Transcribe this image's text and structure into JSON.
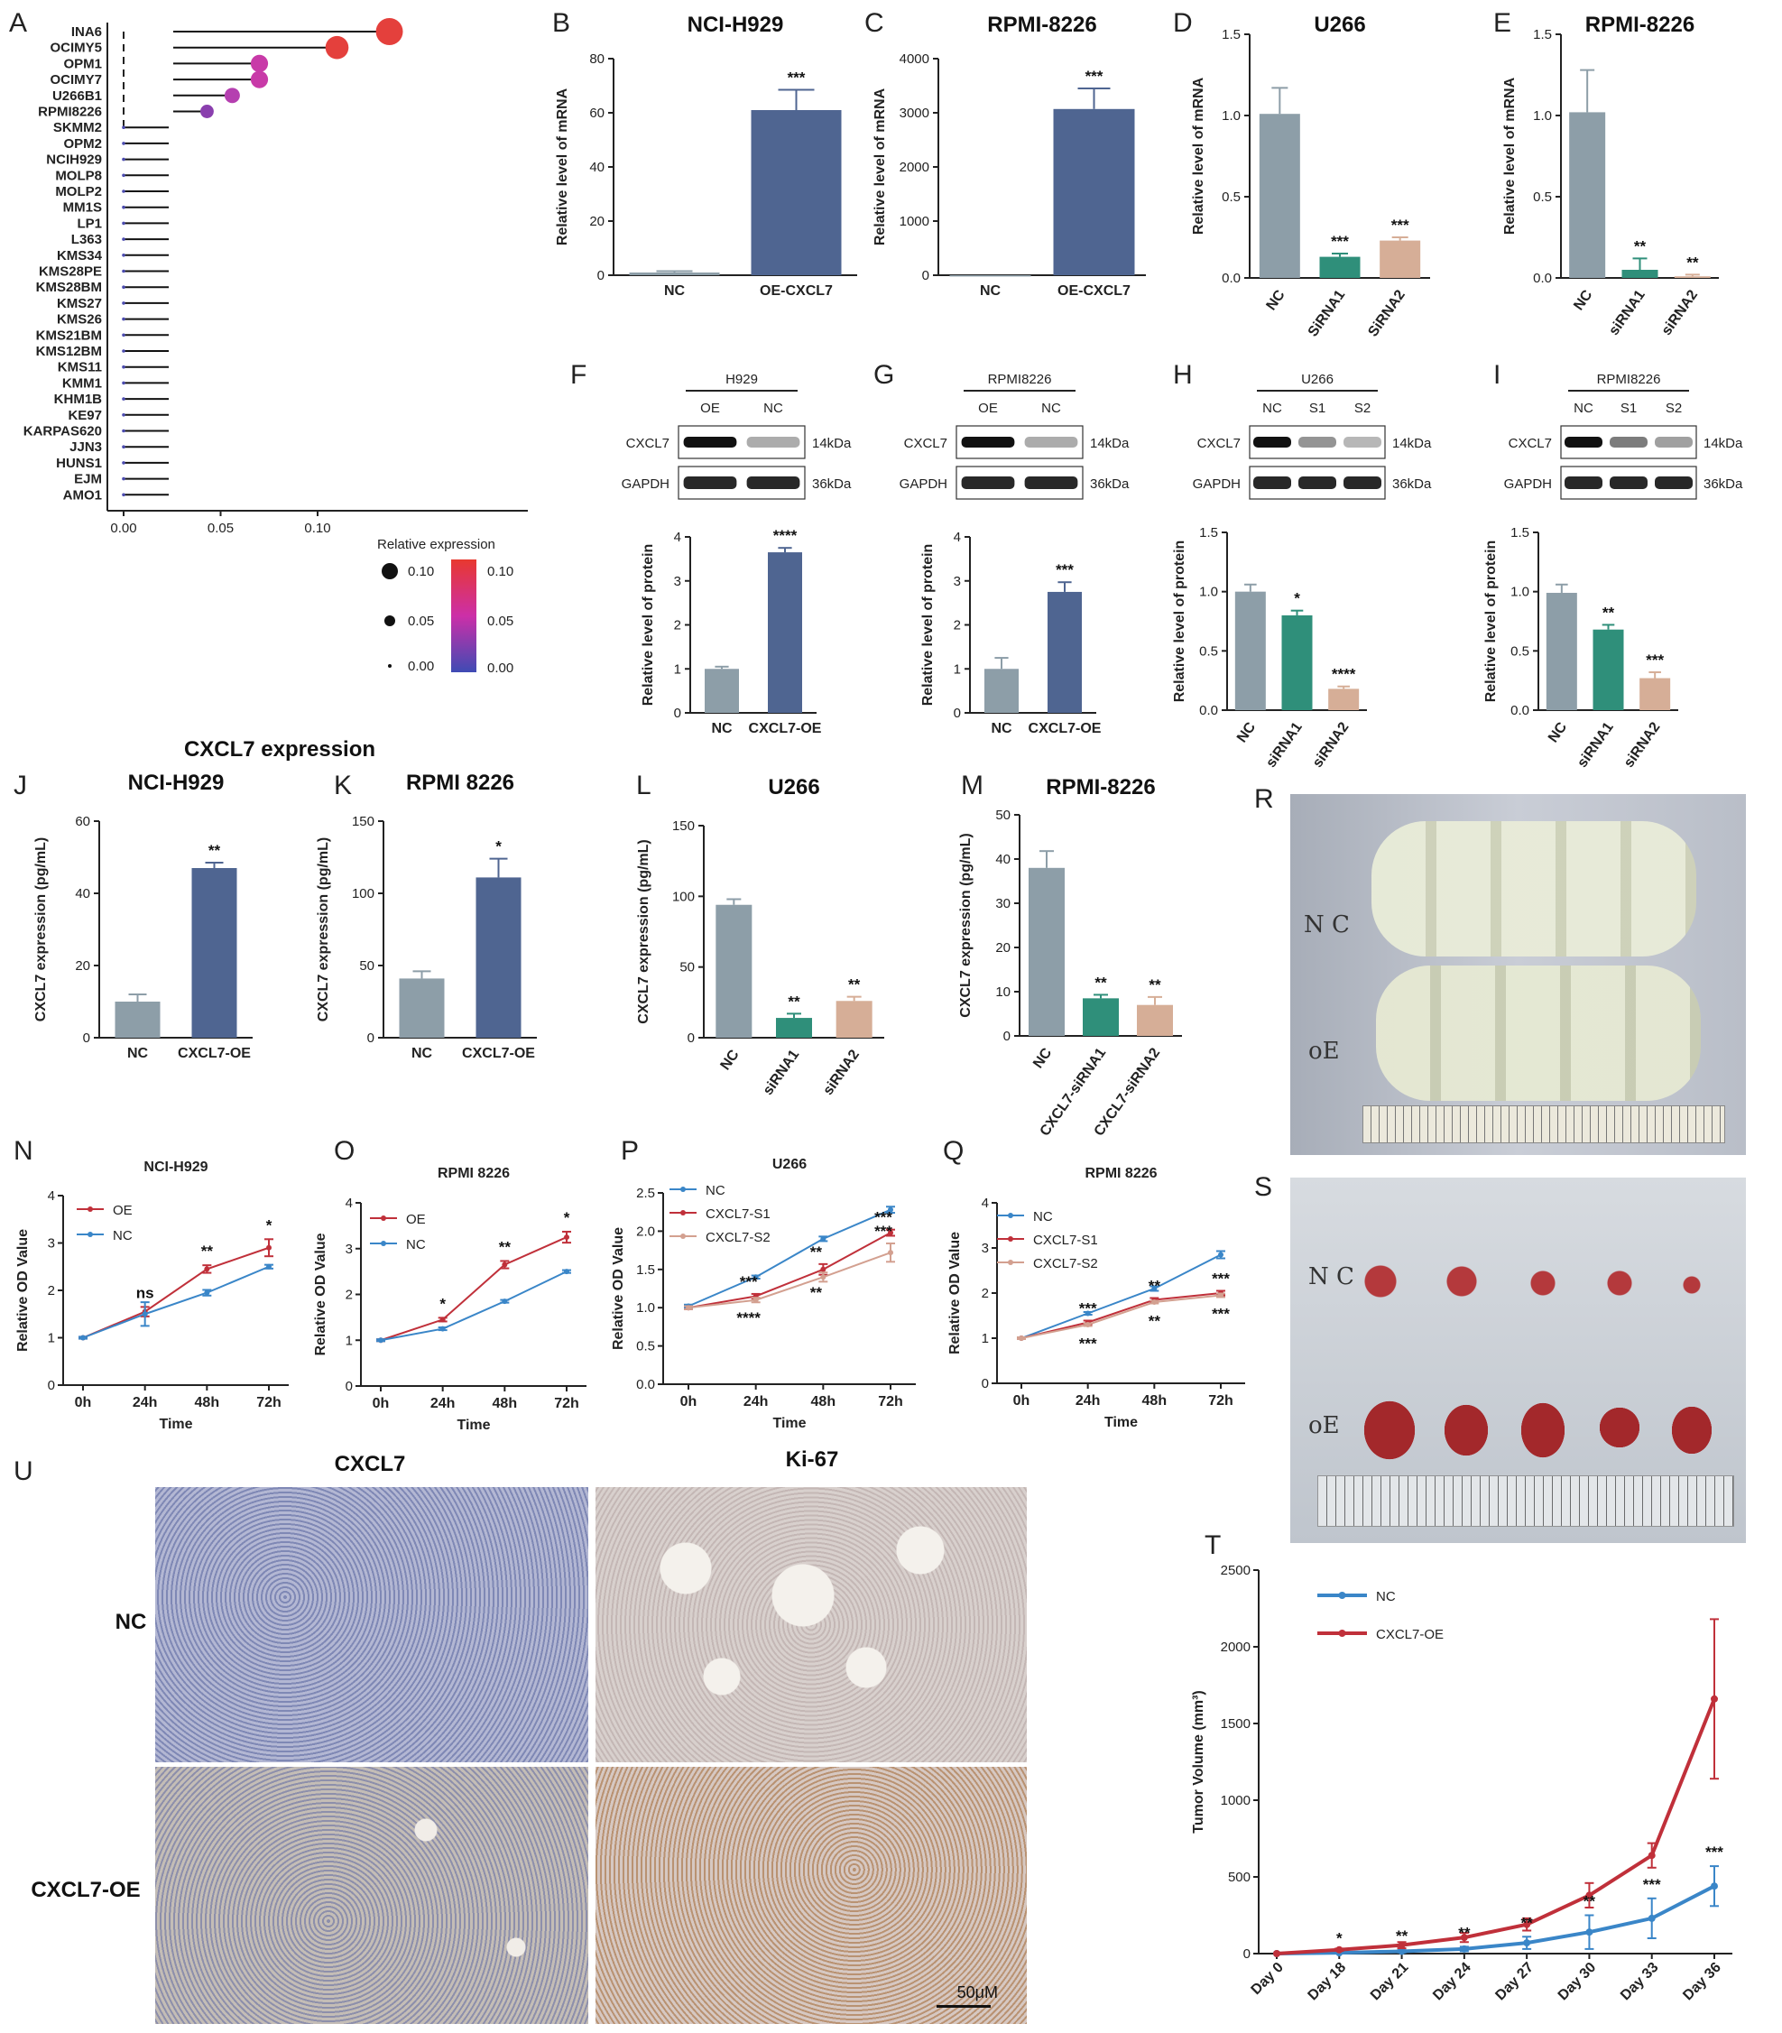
{
  "panel_letters": [
    "A",
    "B",
    "C",
    "D",
    "E",
    "F",
    "G",
    "H",
    "I",
    "J",
    "K",
    "L",
    "M",
    "N",
    "O",
    "P",
    "Q",
    "R",
    "S",
    "T",
    "U"
  ],
  "colors": {
    "nc": "#8d9ea8",
    "oe": "#4f6591",
    "sirna1": "#2f8f7a",
    "sirna2": "#d6ae97",
    "line_oe": "#c0303a",
    "line_nc": "#3a86c8",
    "line_s2": "#d3a090"
  },
  "lollipop": {
    "xlabel": "CXCL7 expression",
    "xticks": [
      "0.00",
      "0.05",
      "0.10"
    ],
    "legend_title": "Relative expression",
    "legend_size_labels": [
      "0.10",
      "0.05",
      "0.00"
    ],
    "legend_color_labels": [
      "0.10",
      "0.05",
      "0.00"
    ],
    "lines": [
      "INA6",
      "OCIMY5",
      "OPM1",
      "OCIMY7",
      "U266B1",
      "RPMI8226",
      "SKMM2",
      "OPM2",
      "NCIH929",
      "MOLP8",
      "MOLP2",
      "MM1S",
      "LP1",
      "L363",
      "KMS34",
      "KMS28PE",
      "KMS28BM",
      "KMS27",
      "KMS26",
      "KMS21BM",
      "KMS12BM",
      "KMS11",
      "KMM1",
      "KHM1B",
      "KE97",
      "KARPAS620",
      "JJN3",
      "HUNS1",
      "EJM",
      "AMO1"
    ],
    "values": [
      0.137,
      0.11,
      0.07,
      0.07,
      0.056,
      0.043,
      0,
      0,
      0,
      0,
      0,
      0,
      0,
      0,
      0,
      0,
      0,
      0,
      0,
      0,
      0,
      0,
      0,
      0,
      0,
      0,
      0,
      0,
      0,
      0
    ]
  },
  "blots": [
    {
      "id": "F",
      "cell": "H929",
      "lanes": [
        "OE",
        "NC"
      ],
      "intensity": [
        1.0,
        0.35
      ]
    },
    {
      "id": "G",
      "cell": "RPMI8226",
      "lanes": [
        "OE",
        "NC"
      ],
      "intensity": [
        1.0,
        0.35
      ]
    },
    {
      "id": "H",
      "cell": "U266",
      "lanes": [
        "NC",
        "S1",
        "S2"
      ],
      "intensity": [
        1.0,
        0.45,
        0.3
      ]
    },
    {
      "id": "I",
      "cell": "RPMI8226",
      "lanes": [
        "NC",
        "S1",
        "S2"
      ],
      "intensity": [
        1.0,
        0.55,
        0.4
      ]
    }
  ],
  "blot_labels": {
    "target": "CXCL7",
    "control": "GAPDH",
    "target_kda": "14kDa",
    "control_kda": "36kDa"
  },
  "chart_data": [
    {
      "id": "B",
      "type": "bar",
      "title": "NCI-H929",
      "ylabel": "Relative level of mRNA",
      "categories": [
        "NC",
        "OE-CXCL7"
      ],
      "values": [
        1,
        61
      ],
      "errors": [
        0.5,
        7.5
      ],
      "ylim": [
        0,
        80
      ],
      "yticks": [
        "0",
        "20",
        "40",
        "60",
        "80"
      ],
      "annotations": [
        "",
        "***"
      ]
    },
    {
      "id": "C",
      "type": "bar",
      "title": "RPMI-8226",
      "ylabel": "Relative level of mRNA",
      "categories": [
        "NC",
        "OE-CXCL7"
      ],
      "values": [
        1,
        3070
      ],
      "errors": [
        0,
        380
      ],
      "ylim": [
        0,
        4000
      ],
      "yticks": [
        "0",
        "1000",
        "2000",
        "3000",
        "4000"
      ],
      "annotations": [
        "",
        "***"
      ]
    },
    {
      "id": "D",
      "type": "bar",
      "title": "U266",
      "ylabel": "Relative level of mRNA",
      "categories": [
        "NC",
        "SiRNA1",
        "SiRNA2"
      ],
      "values": [
        1.01,
        0.13,
        0.23
      ],
      "errors": [
        0.16,
        0.02,
        0.02
      ],
      "ylim": [
        0,
        1.5
      ],
      "yticks": [
        "0.0",
        "0.5",
        "1.0",
        "1.5"
      ],
      "annotations": [
        "",
        "***",
        "***"
      ]
    },
    {
      "id": "E",
      "type": "bar",
      "title": "RPMI-8226",
      "ylabel": "Relative level of mRNA",
      "categories": [
        "NC",
        "siRNA1",
        "siRNA2"
      ],
      "values": [
        1.02,
        0.05,
        0.01
      ],
      "errors": [
        0.26,
        0.07,
        0.01
      ],
      "ylim": [
        0,
        1.5
      ],
      "yticks": [
        "0.0",
        "0.5",
        "1.0",
        "1.5"
      ],
      "annotations": [
        "",
        "**",
        "**"
      ]
    },
    {
      "id": "F",
      "type": "bar",
      "title": "",
      "ylabel": "Relative level of protein",
      "categories": [
        "NC",
        "CXCL7-OE"
      ],
      "values": [
        1.0,
        3.65
      ],
      "errors": [
        0.05,
        0.1
      ],
      "ylim": [
        0,
        4
      ],
      "yticks": [
        "0",
        "1",
        "2",
        "3",
        "4"
      ],
      "annotations": [
        "",
        "****"
      ]
    },
    {
      "id": "G",
      "type": "bar",
      "title": "",
      "ylabel": "Relative level of protein",
      "categories": [
        "NC",
        "CXCL7-OE"
      ],
      "values": [
        1.0,
        2.75
      ],
      "errors": [
        0.25,
        0.22
      ],
      "ylim": [
        0,
        4
      ],
      "yticks": [
        "0",
        "1",
        "2",
        "3",
        "4"
      ],
      "annotations": [
        "",
        "***"
      ]
    },
    {
      "id": "H",
      "type": "bar",
      "title": "",
      "ylabel": "Relative level of protein",
      "categories": [
        "NC",
        "siRNA1",
        "siRNA2"
      ],
      "values": [
        1.0,
        0.8,
        0.18
      ],
      "errors": [
        0.06,
        0.04,
        0.02
      ],
      "ylim": [
        0,
        1.5
      ],
      "yticks": [
        "0.0",
        "0.5",
        "1.0",
        "1.5"
      ],
      "annotations": [
        "",
        "*",
        "****"
      ]
    },
    {
      "id": "I",
      "type": "bar",
      "title": "",
      "ylabel": "Relative level of protein",
      "categories": [
        "NC",
        "siRNA1",
        "siRNA2"
      ],
      "values": [
        0.99,
        0.68,
        0.27
      ],
      "errors": [
        0.07,
        0.04,
        0.05
      ],
      "ylim": [
        0,
        1.5
      ],
      "yticks": [
        "0.0",
        "0.5",
        "1.0",
        "1.5"
      ],
      "annotations": [
        "",
        "**",
        "***"
      ]
    },
    {
      "id": "J",
      "type": "bar",
      "title": "NCI-H929",
      "ylabel": "CXCL7 expression (pg/mL)",
      "categories": [
        "NC",
        "CXCL7-OE"
      ],
      "values": [
        10,
        47
      ],
      "errors": [
        2,
        1.5
      ],
      "ylim": [
        0,
        60
      ],
      "yticks": [
        "0",
        "20",
        "40",
        "60"
      ],
      "annotations": [
        "",
        "**"
      ]
    },
    {
      "id": "K",
      "type": "bar",
      "title": "RPMI 8226",
      "ylabel": "CXCL7 expression (pg/mL)",
      "categories": [
        "NC",
        "CXCL7-OE"
      ],
      "values": [
        41,
        111
      ],
      "errors": [
        5,
        13
      ],
      "ylim": [
        0,
        150
      ],
      "yticks": [
        "0",
        "50",
        "100",
        "150"
      ],
      "annotations": [
        "",
        "*"
      ]
    },
    {
      "id": "L",
      "type": "bar",
      "title": "U266",
      "ylabel": "CXCL7 expression (pg/mL)",
      "categories": [
        "NC",
        "siRNA1",
        "siRNA2"
      ],
      "values": [
        94,
        14,
        26
      ],
      "errors": [
        4,
        3,
        3
      ],
      "ylim": [
        0,
        150
      ],
      "yticks": [
        "0",
        "50",
        "100",
        "150"
      ],
      "annotations": [
        "",
        "**",
        "**"
      ]
    },
    {
      "id": "M",
      "type": "bar",
      "title": "RPMI-8226",
      "ylabel": "CXCL7 expression (pg/mL)",
      "categories": [
        "NC",
        "CXCL7-siRNA1",
        "CXCL7-siRNA2"
      ],
      "values": [
        38,
        8.5,
        7
      ],
      "errors": [
        3.8,
        0.8,
        1.8
      ],
      "ylim": [
        0,
        50
      ],
      "yticks": [
        "0",
        "10",
        "20",
        "30",
        "40",
        "50"
      ],
      "annotations": [
        "",
        "**",
        "**"
      ]
    },
    {
      "id": "N",
      "type": "line",
      "title": "NCI-H929",
      "ylabel": "Relative OD Value",
      "xlabel": "Time",
      "x": [
        "0h",
        "24h",
        "48h",
        "72h"
      ],
      "ylim": [
        0,
        4
      ],
      "yticks": [
        "0",
        "1",
        "2",
        "3",
        "4"
      ],
      "series": [
        {
          "name": "OE",
          "values": [
            1.0,
            1.55,
            2.45,
            2.9
          ],
          "errors": [
            0.02,
            0.1,
            0.08,
            0.18
          ]
        },
        {
          "name": "NC",
          "values": [
            1.0,
            1.5,
            1.95,
            2.5
          ],
          "errors": [
            0.02,
            0.25,
            0.06,
            0.04
          ]
        }
      ],
      "annotations": [
        "",
        "ns",
        "**",
        "*"
      ]
    },
    {
      "id": "O",
      "type": "line",
      "title": "RPMI 8226",
      "ylabel": "Relative OD Value",
      "xlabel": "Time",
      "x": [
        "0h",
        "24h",
        "48h",
        "72h"
      ],
      "ylim": [
        0,
        4
      ],
      "yticks": [
        "0",
        "1",
        "2",
        "3",
        "4"
      ],
      "series": [
        {
          "name": "OE",
          "values": [
            1.0,
            1.45,
            2.65,
            3.25
          ],
          "errors": [
            0.02,
            0.04,
            0.08,
            0.12
          ]
        },
        {
          "name": "NC",
          "values": [
            1.0,
            1.25,
            1.85,
            2.5
          ],
          "errors": [
            0.02,
            0.03,
            0.03,
            0.03
          ]
        }
      ],
      "annotations": [
        "",
        "*",
        "**",
        "*"
      ]
    },
    {
      "id": "P",
      "type": "line",
      "title": "U266",
      "ylabel": "Relative OD Value",
      "xlabel": "Time",
      "x": [
        "0h",
        "24h",
        "48h",
        "72h"
      ],
      "ylim": [
        0,
        2.5
      ],
      "yticks": [
        "0.0",
        "0.5",
        "1.0",
        "1.5",
        "2.0",
        "2.5"
      ],
      "series": [
        {
          "name": "NC",
          "values": [
            1.02,
            1.4,
            1.9,
            2.28
          ],
          "errors": [
            0.02,
            0.02,
            0.03,
            0.04
          ]
        },
        {
          "name": "CXCL7-S1",
          "values": [
            1.0,
            1.15,
            1.5,
            1.98
          ],
          "errors": [
            0.02,
            0.03,
            0.07,
            0.04
          ]
        },
        {
          "name": "CXCL7-S2",
          "values": [
            1.0,
            1.1,
            1.4,
            1.72
          ],
          "errors": [
            0.02,
            0.03,
            0.06,
            0.12
          ]
        }
      ],
      "annotations_top": [
        "",
        "***",
        "**",
        "***"
      ],
      "annotations_mid": [
        "",
        "",
        "",
        "***"
      ],
      "annotations_low": [
        "",
        "****",
        "**",
        ""
      ]
    },
    {
      "id": "Q",
      "type": "line",
      "title": "RPMI 8226",
      "ylabel": "Relative OD Value",
      "xlabel": "Time",
      "x": [
        "0h",
        "24h",
        "48h",
        "72h"
      ],
      "ylim": [
        0,
        4
      ],
      "yticks": [
        "0",
        "1",
        "2",
        "3",
        "4"
      ],
      "series": [
        {
          "name": "NC",
          "values": [
            1.0,
            1.55,
            2.1,
            2.85
          ],
          "errors": [
            0.02,
            0.03,
            0.05,
            0.08
          ]
        },
        {
          "name": "CXCL7-S1",
          "values": [
            1.0,
            1.35,
            1.85,
            2.0
          ],
          "errors": [
            0.02,
            0.04,
            0.04,
            0.05
          ]
        },
        {
          "name": "CXCL7-S2",
          "values": [
            1.0,
            1.3,
            1.8,
            1.95
          ],
          "errors": [
            0.02,
            0.03,
            0.03,
            0.04
          ]
        }
      ],
      "annotations_top": [
        "",
        "***",
        "**",
        "***"
      ],
      "annotations_low": [
        "",
        "***",
        "**",
        "***"
      ]
    },
    {
      "id": "T",
      "type": "line",
      "title": "",
      "ylabel": "Tumor Volume (mm³)",
      "xlabel": "",
      "x": [
        "Day 0",
        "Day 18",
        "Day 21",
        "Day 24",
        "Day 27",
        "Day 30",
        "Day 33",
        "Day 36"
      ],
      "ylim": [
        0,
        2500
      ],
      "yticks": [
        "0",
        "500",
        "1000",
        "1500",
        "2000",
        "2500"
      ],
      "series": [
        {
          "name": "NC",
          "values": [
            0,
            5,
            15,
            30,
            70,
            140,
            230,
            440
          ],
          "errors": [
            0,
            3,
            8,
            15,
            40,
            110,
            130,
            130
          ]
        },
        {
          "name": "CXCL7-OE",
          "values": [
            0,
            25,
            55,
            105,
            190,
            380,
            640,
            1660
          ],
          "errors": [
            0,
            8,
            20,
            30,
            40,
            80,
            80,
            520
          ]
        }
      ],
      "annotations": [
        "",
        "*",
        "**",
        "**",
        "**",
        "**",
        "***",
        "***"
      ]
    }
  ],
  "photos": {
    "R_labels": [
      "N C",
      "oE"
    ],
    "S_labels": [
      "N C",
      "oE"
    ],
    "U_col_titles": [
      "CXCL7",
      "Ki-67"
    ],
    "U_row_labels": [
      "NC",
      "CXCL7-OE"
    ],
    "scale_bar": "50μM"
  }
}
